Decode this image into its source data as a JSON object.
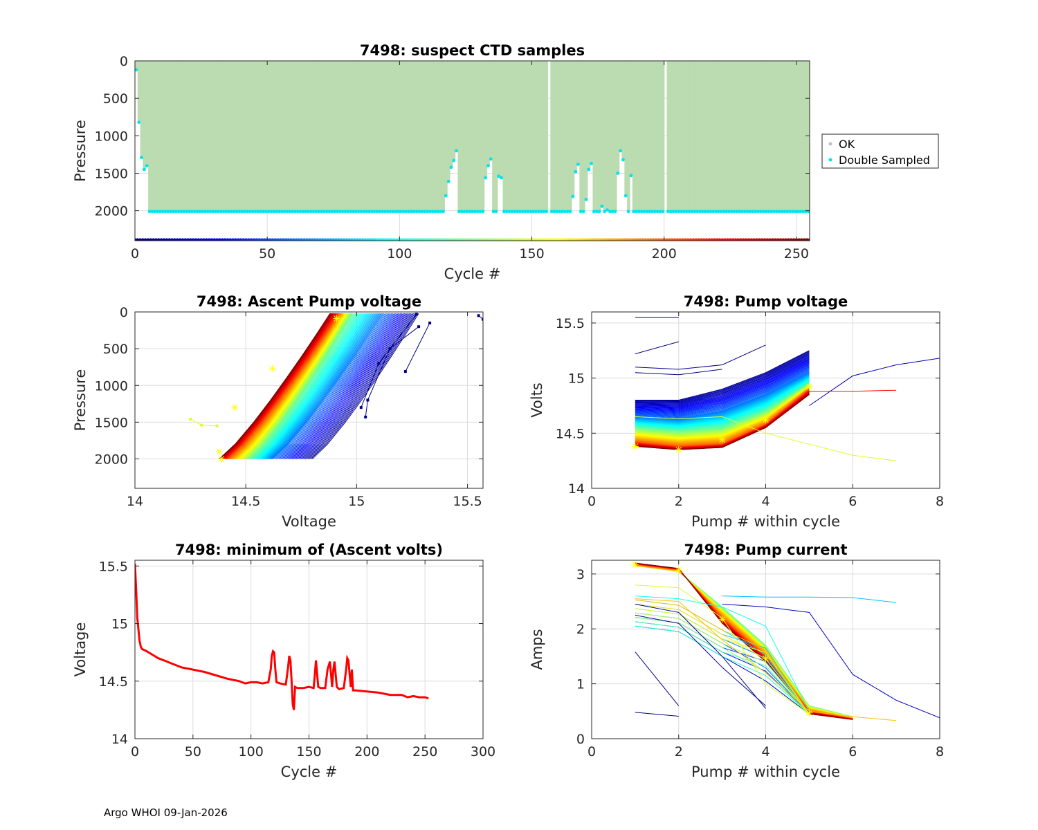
{
  "footer": "Argo WHOI 09-Jan-2026",
  "chart_data": [
    {
      "id": "ctd",
      "type": "scatter",
      "title": "7498: suspect CTD samples",
      "xlabel": "Cycle #",
      "ylabel": "Pressure",
      "xlim": [
        0,
        255
      ],
      "ylim": [
        0,
        2400
      ],
      "y_reversed": true,
      "xticks": [
        0,
        50,
        100,
        150,
        200,
        250
      ],
      "yticks": [
        0,
        500,
        1000,
        1500,
        2000
      ],
      "legend": {
        "position": "outside-right",
        "entries": [
          {
            "label": "OK",
            "color": "#c0c0c0"
          },
          {
            "label": "Double Sampled",
            "color": "#00e5ee"
          }
        ]
      },
      "ok_fill_color": "#bbdbb0",
      "profile_bottom_default": 2010,
      "shallow_profiles": [
        {
          "cycle": 0,
          "depth": 120
        },
        {
          "cycle": 1,
          "depth": 820
        },
        {
          "cycle": 2,
          "depth": 1290
        },
        {
          "cycle": 3,
          "depth": 1450
        },
        {
          "cycle": 4,
          "depth": 1400
        },
        {
          "cycle": 117,
          "depth": 1800
        },
        {
          "cycle": 118,
          "depth": 1610
        },
        {
          "cycle": 119,
          "depth": 1420
        },
        {
          "cycle": 120,
          "depth": 1330
        },
        {
          "cycle": 121,
          "depth": 1200
        },
        {
          "cycle": 132,
          "depth": 1560
        },
        {
          "cycle": 133,
          "depth": 1400
        },
        {
          "cycle": 134,
          "depth": 1310
        },
        {
          "cycle": 137,
          "depth": 1540
        },
        {
          "cycle": 138,
          "depth": 1560
        },
        {
          "cycle": 165,
          "depth": 1810
        },
        {
          "cycle": 166,
          "depth": 1480
        },
        {
          "cycle": 167,
          "depth": 1380
        },
        {
          "cycle": 170,
          "depth": 1850
        },
        {
          "cycle": 171,
          "depth": 1450
        },
        {
          "cycle": 172,
          "depth": 1370
        },
        {
          "cycle": 176,
          "depth": 1940
        },
        {
          "cycle": 178,
          "depth": 1990
        },
        {
          "cycle": 182,
          "depth": 1500
        },
        {
          "cycle": 183,
          "depth": 1200
        },
        {
          "cycle": 184,
          "depth": 1320
        },
        {
          "cycle": 185,
          "depth": 1800
        },
        {
          "cycle": 187,
          "depth": 1530
        }
      ],
      "gap_cycles": [
        156,
        200
      ],
      "colorbar_cycles": [
        0,
        255
      ]
    },
    {
      "id": "ascent",
      "type": "line",
      "title": "7498: Ascent Pump voltage",
      "xlabel": "Voltage",
      "ylabel": "Pressure",
      "xlim": [
        14,
        15.57
      ],
      "ylim": [
        0,
        2400
      ],
      "y_reversed": true,
      "xticks": [
        14,
        14.5,
        15,
        15.5
      ],
      "yticks": [
        0,
        500,
        1000,
        1500,
        2000
      ],
      "series_color_by": "cycle number (jet colormap, 0-255)",
      "envelope": {
        "cycles": [
          5,
          60,
          120,
          200,
          253
        ],
        "bottom_volts_at_2000": [
          14.8,
          14.62,
          14.52,
          14.42,
          14.38
        ],
        "top_volts_at_20": [
          15.28,
          15.12,
          14.98,
          14.92,
          14.88
        ]
      },
      "outlier_series": [
        {
          "cycle": 0,
          "points": [
            [
              15.55,
              50
            ],
            [
              15.57,
              100
            ]
          ]
        },
        {
          "cycle": 1,
          "points": [
            [
              15.33,
              150
            ],
            [
              15.22,
              810
            ]
          ]
        },
        {
          "cycle": 2,
          "points": [
            [
              15.28,
              200
            ],
            [
              15.15,
              500
            ],
            [
              15.05,
              1200
            ],
            [
              15.04,
              1430
            ]
          ]
        },
        {
          "cycle": 3,
          "points": [
            [
              15.27,
              30
            ],
            [
              15.1,
              700
            ],
            [
              15.02,
              1300
            ]
          ]
        },
        {
          "cycle": 150,
          "points": [
            [
              14.25,
              1460
            ],
            [
              14.3,
              1540
            ],
            [
              14.37,
              1550
            ]
          ]
        }
      ]
    },
    {
      "id": "pumpvolt",
      "type": "line",
      "title": "7498: Pump voltage",
      "xlabel": "Pump # within cycle",
      "ylabel": "Volts",
      "xlim": [
        0,
        8
      ],
      "ylim": [
        14,
        15.6
      ],
      "xticks": [
        0,
        2,
        4,
        6,
        8
      ],
      "yticks": [
        14,
        14.5,
        15,
        15.5
      ],
      "yticklabels": [
        "14",
        "14.5",
        "15",
        "15.5"
      ],
      "series_color_by": "cycle number (jet colormap, 0-255)",
      "envelope": {
        "cycles": [
          5,
          60,
          120,
          200,
          253
        ],
        "pump_volts": [
          [
            14.8,
            14.8,
            14.9,
            15.05,
            15.25
          ],
          [
            14.65,
            14.63,
            14.7,
            14.85,
            15.05
          ],
          [
            14.55,
            14.52,
            14.55,
            14.7,
            14.95
          ],
          [
            14.42,
            14.38,
            14.4,
            14.58,
            14.9
          ],
          [
            14.38,
            14.35,
            14.37,
            14.55,
            14.85
          ]
        ]
      },
      "outlier_series": [
        {
          "cycle": 0,
          "points": [
            [
              1,
              15.55
            ],
            [
              2,
              15.55
            ]
          ]
        },
        {
          "cycle": 1,
          "points": [
            [
              1,
              15.22
            ],
            [
              2,
              15.33
            ]
          ]
        },
        {
          "cycle": 2,
          "points": [
            [
              1,
              15.1
            ],
            [
              2,
              15.08
            ],
            [
              3,
              15.12
            ],
            [
              4,
              15.3
            ]
          ]
        },
        {
          "cycle": 3,
          "points": [
            [
              1,
              15.05
            ],
            [
              2,
              15.03
            ],
            [
              3,
              15.08
            ]
          ]
        },
        {
          "cycle": 10,
          "points": [
            [
              5,
              14.75
            ],
            [
              6,
              15.02
            ],
            [
              7,
              15.12
            ],
            [
              8,
              15.18
            ]
          ]
        },
        {
          "cycle": 150,
          "points": [
            [
              1,
              14.65
            ],
            [
              2,
              14.63
            ],
            [
              3,
              14.65
            ],
            [
              4,
              14.5
            ],
            [
              5,
              14.4
            ],
            [
              6,
              14.3
            ],
            [
              7,
              14.25
            ]
          ]
        },
        {
          "cycle": 220,
          "points": [
            [
              5,
              14.88
            ],
            [
              6,
              14.88
            ],
            [
              7,
              14.89
            ]
          ]
        }
      ]
    },
    {
      "id": "minvolt",
      "type": "line",
      "title": "7498: minimum of (Ascent volts)",
      "xlabel": "Cycle #",
      "ylabel": "Voltage",
      "xlim": [
        0,
        300
      ],
      "ylim": [
        14,
        15.55
      ],
      "xticks": [
        0,
        50,
        100,
        150,
        200,
        250,
        300
      ],
      "yticks": [
        14,
        14.5,
        15,
        15.5
      ],
      "yticklabels": [
        "14",
        "14.5",
        "15",
        "15.5"
      ],
      "color": "#ff0000",
      "x": [
        0,
        1,
        2,
        3,
        4,
        5,
        6,
        8,
        10,
        15,
        20,
        30,
        40,
        50,
        60,
        70,
        80,
        90,
        95,
        100,
        105,
        110,
        115,
        117,
        118,
        119,
        120,
        121,
        122,
        125,
        130,
        132,
        133,
        134,
        135,
        136,
        137,
        138,
        140,
        145,
        150,
        154,
        155,
        156,
        158,
        160,
        164,
        166,
        168,
        170,
        171,
        172,
        174,
        176,
        180,
        182,
        183,
        184,
        186,
        187,
        188,
        190,
        200,
        210,
        220,
        230,
        235,
        240,
        245,
        250,
        253
      ],
      "y": [
        15.52,
        15.3,
        15.05,
        14.95,
        14.85,
        14.8,
        14.78,
        14.77,
        14.76,
        14.73,
        14.7,
        14.66,
        14.62,
        14.6,
        14.58,
        14.55,
        14.52,
        14.5,
        14.48,
        14.49,
        14.49,
        14.48,
        14.49,
        14.6,
        14.72,
        14.76,
        14.75,
        14.6,
        14.49,
        14.48,
        14.47,
        14.62,
        14.72,
        14.68,
        14.5,
        14.3,
        14.25,
        14.45,
        14.44,
        14.44,
        14.45,
        14.44,
        14.55,
        14.68,
        14.45,
        14.44,
        14.44,
        14.6,
        14.67,
        14.45,
        14.6,
        14.67,
        14.45,
        14.43,
        14.44,
        14.6,
        14.7,
        14.68,
        14.45,
        14.6,
        14.42,
        14.42,
        14.41,
        14.4,
        14.38,
        14.38,
        14.36,
        14.37,
        14.36,
        14.36,
        14.35
      ]
    },
    {
      "id": "current",
      "type": "line",
      "title": "7498: Pump current",
      "xlabel": "Pump # within cycle",
      "ylabel": "Amps",
      "xlim": [
        0,
        8
      ],
      "ylim": [
        0,
        3.25
      ],
      "xticks": [
        0,
        2,
        4,
        6,
        8
      ],
      "yticks": [
        0,
        1,
        2,
        3
      ],
      "series_color_by": "cycle number (jet colormap, 0-255)",
      "envelope": {
        "cycles": [
          120,
          170,
          200,
          253
        ],
        "pump_amps": [
          [
            3.15,
            3.05,
            2.4,
            1.7,
            0.6,
            0.4
          ],
          [
            3.15,
            3.05,
            2.3,
            1.6,
            0.55,
            0.38
          ],
          [
            3.18,
            3.08,
            2.2,
            1.5,
            0.5,
            0.36
          ],
          [
            3.2,
            3.1,
            2.1,
            1.4,
            0.45,
            0.35
          ]
        ]
      },
      "outlier_series": [
        {
          "cycle": 0,
          "points": [
            [
              1,
              0.48
            ],
            [
              2,
              0.41
            ]
          ]
        },
        {
          "cycle": 1,
          "points": [
            [
              1,
              1.58
            ],
            [
              2,
              0.6
            ]
          ]
        },
        {
          "cycle": 2,
          "points": [
            [
              1,
              2.45
            ],
            [
              2,
              2.3
            ],
            [
              3,
              1.5
            ],
            [
              4,
              0.55
            ]
          ]
        },
        {
          "cycle": 3,
          "points": [
            [
              1,
              2.25
            ],
            [
              2,
              2.1
            ],
            [
              3,
              1.3
            ],
            [
              4,
              0.6
            ]
          ]
        },
        {
          "cycle": 15,
          "points": [
            [
              3,
              2.45
            ],
            [
              4,
              2.4
            ],
            [
              5,
              2.3
            ],
            [
              6,
              1.17
            ],
            [
              7,
              0.7
            ],
            [
              8,
              0.38
            ]
          ]
        },
        {
          "cycle": 80,
          "points": [
            [
              3,
              2.6
            ],
            [
              4,
              2.58
            ],
            [
              5,
              2.58
            ],
            [
              6,
              2.57
            ],
            [
              7,
              2.48
            ]
          ]
        },
        {
          "cycle": 150,
          "points": [
            [
              1,
              2.8
            ],
            [
              2,
              2.75
            ],
            [
              3,
              2.2
            ],
            [
              4,
              1.0
            ],
            [
              5,
              0.45
            ]
          ]
        },
        {
          "cycle": 175,
          "points": [
            [
              1,
              2.55
            ],
            [
              2,
              2.5
            ],
            [
              3,
              1.8
            ],
            [
              4,
              1.2
            ],
            [
              5,
              0.5
            ],
            [
              6,
              0.4
            ],
            [
              7,
              0.33
            ]
          ]
        },
        {
          "cycle": 100,
          "points": [
            [
              1,
              2.6
            ],
            [
              2,
              2.55
            ],
            [
              3,
              2.4
            ],
            [
              4,
              2.05
            ],
            [
              5,
              0.5
            ]
          ]
        }
      ]
    }
  ]
}
